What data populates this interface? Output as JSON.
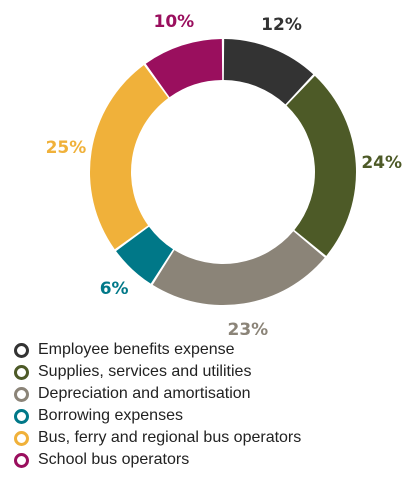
{
  "chart_data": {
    "type": "pie",
    "donut": true,
    "legend_position": "bottom",
    "series": [
      {
        "name": "Employee benefits expense",
        "value": 12,
        "label": "12%",
        "color": "#333333"
      },
      {
        "name": "Supplies, services and utilities",
        "value": 24,
        "label": "24%",
        "color": "#4d5a27"
      },
      {
        "name": "Depreciation and amortisation",
        "value": 23,
        "label": "23%",
        "color": "#8b8478"
      },
      {
        "name": "Borrowing expenses",
        "value": 6,
        "label": "6%",
        "color": "#007888"
      },
      {
        "name": "Bus, ferry and regional bus operators",
        "value": 25,
        "label": "25%",
        "color": "#f0b13a"
      },
      {
        "name": "School bus operators",
        "value": 10,
        "label": "10%",
        "color": "#9a0f5e"
      }
    ]
  }
}
